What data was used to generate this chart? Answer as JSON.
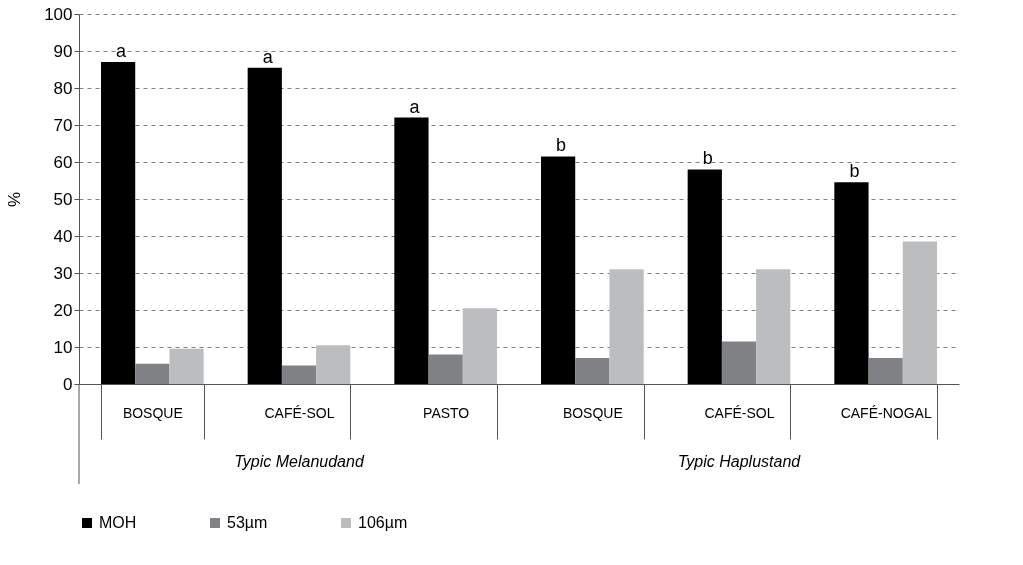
{
  "chart_data": {
    "type": "bar",
    "ylabel": "%",
    "categories": [
      "BOSQUE",
      "CAFÉ-SOL",
      "PASTO",
      "BOSQUE",
      "CAFÉ-SOL",
      "CAFÉ-NOGAL"
    ],
    "series": [
      {
        "name": "MOH",
        "color": "#000000",
        "values": [
          87,
          85.5,
          72,
          61.5,
          58,
          54.5
        ],
        "value_labels": [
          "a",
          "a",
          "a",
          "b",
          "b",
          "b"
        ]
      },
      {
        "name": "53µm",
        "color": "#808184",
        "values": [
          5.5,
          5,
          8,
          7,
          11.5,
          7
        ]
      },
      {
        "name": "106µm",
        "color": "#bcbdbf",
        "values": [
          9.5,
          10.5,
          20.5,
          31,
          31,
          38.5
        ]
      }
    ],
    "annotations": [
      "Typic Melanudand",
      "Typic Haplustand"
    ],
    "ylim": [
      0,
      100
    ],
    "yticks": [
      0,
      10,
      20,
      30,
      40,
      50,
      60,
      70,
      80,
      90,
      100
    ],
    "grid": "y",
    "legend": "bottom"
  }
}
